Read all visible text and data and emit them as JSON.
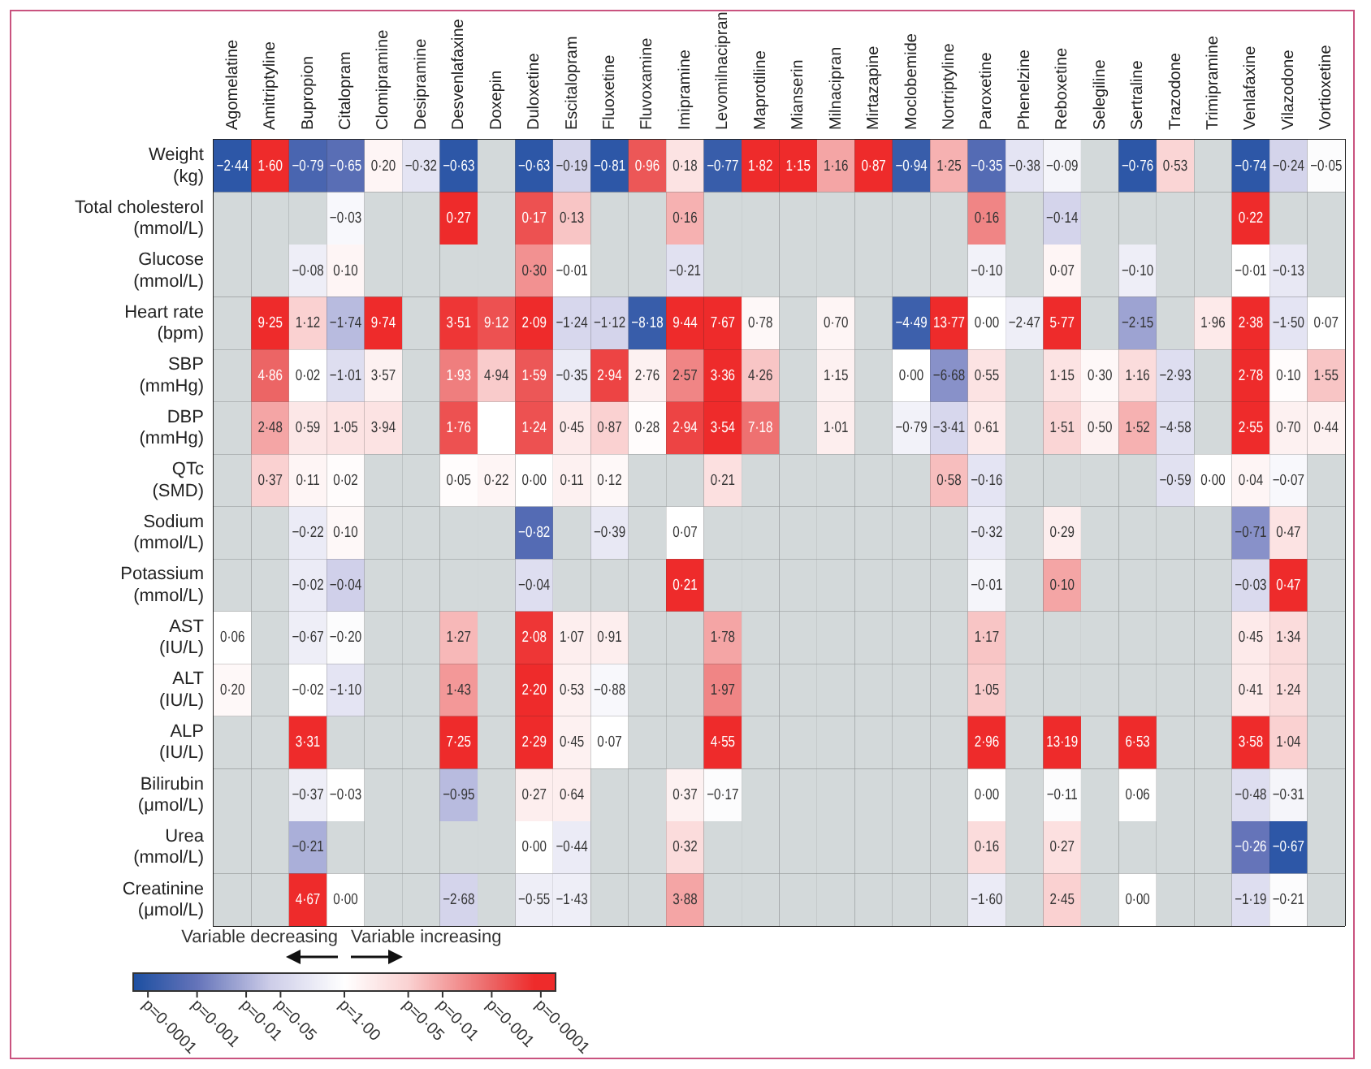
{
  "chart_data": {
    "type": "heatmap",
    "categories": [
      "Agomelatine",
      "Amitriptyline",
      "Bupropion",
      "Citalopram",
      "Clomipramine",
      "Desipramine",
      "Desvenlafaxine",
      "Doxepin",
      "Duloxetine",
      "Escitalopram",
      "Fluoxetine",
      "Fluvoxamine",
      "Imipramine",
      "Levomilnacipran",
      "Maprotiline",
      "Mianserin",
      "Milnacipran",
      "Mirtazapine",
      "Moclobemide",
      "Nortriptyline",
      "Paroxetine",
      "Phenelzine",
      "Reboxetine",
      "Selegiline",
      "Sertraline",
      "Trazodone",
      "Trimipramine",
      "Venlafaxine",
      "Vilazodone",
      "Vortioxetine"
    ],
    "y_categories": [
      "Weight (kg)",
      "Total cholesterol (mmol/L)",
      "Glucose (mmol/L)",
      "Heart rate (bpm)",
      "SBP (mmHg)",
      "DBP (mmHg)",
      "QTc (SMD)",
      "Sodium (mmol/L)",
      "Potassium (mmol/L)",
      "AST (IU/L)",
      "ALT (IU/L)",
      "ALP (IU/L)",
      "Bilirubin (μmol/L)",
      "Urea (mmol/L)",
      "Creatinine (μmol/L)"
    ],
    "cells": [
      [
        -4,
        4,
        -3.5,
        -3.2,
        0.3,
        -0.8,
        -4,
        null,
        -4,
        -1.3,
        -4,
        3.2,
        0.8,
        -3.8,
        4,
        4,
        2,
        4,
        -3.8,
        1.8,
        -3.3,
        -0.8,
        -0.3,
        null,
        -4,
        1.2,
        null,
        -4,
        -1.3,
        -0.1
      ],
      [
        null,
        null,
        null,
        -0.2,
        null,
        null,
        4,
        null,
        3.3,
        1.5,
        null,
        null,
        1.8,
        null,
        null,
        null,
        null,
        null,
        null,
        null,
        2.5,
        null,
        -1.3,
        null,
        null,
        null,
        null,
        4,
        null,
        null
      ],
      [
        null,
        null,
        -0.5,
        0.3,
        null,
        null,
        null,
        null,
        2.3,
        0,
        null,
        null,
        -0.9,
        null,
        null,
        null,
        null,
        null,
        null,
        null,
        -0.4,
        null,
        0.3,
        null,
        -0.5,
        null,
        null,
        0,
        -0.7,
        null
      ],
      [
        null,
        4,
        1.3,
        -1.8,
        4,
        null,
        3.7,
        3.3,
        4,
        -1.2,
        -1.3,
        -3.8,
        4,
        4,
        0.2,
        null,
        0.3,
        null,
        -3.7,
        4,
        0,
        -0.5,
        4,
        null,
        -2.2,
        null,
        0.6,
        4,
        -0.8,
        0
      ],
      [
        null,
        3,
        0,
        -1,
        0.4,
        null,
        2.6,
        1.4,
        3.2,
        -0.6,
        3.5,
        0.4,
        2.5,
        4,
        1.5,
        null,
        0.4,
        null,
        0,
        -2.5,
        0.8,
        null,
        0.8,
        0.2,
        1,
        -1,
        null,
        4,
        0.1,
        1.5
      ],
      [
        null,
        2,
        0.7,
        0.8,
        0.8,
        null,
        3.3,
        0,
        3.3,
        0.6,
        1.3,
        0.1,
        3.5,
        4,
        2.8,
        null,
        0.5,
        null,
        -0.4,
        -1.2,
        0.6,
        null,
        1.2,
        0.4,
        1.8,
        -0.9,
        null,
        4,
        0.4,
        0.4
      ],
      [
        null,
        1.3,
        0.3,
        0.1,
        null,
        null,
        0.1,
        0.3,
        0,
        0.4,
        0.2,
        null,
        null,
        0.9,
        null,
        null,
        null,
        null,
        null,
        1.6,
        -0.8,
        null,
        null,
        null,
        null,
        -0.9,
        0,
        0.3,
        -0.2,
        null
      ],
      [
        null,
        null,
        -0.6,
        0.2,
        null,
        null,
        null,
        null,
        -3.3,
        null,
        -0.7,
        null,
        0,
        null,
        null,
        null,
        null,
        null,
        null,
        null,
        -0.6,
        null,
        0.5,
        null,
        null,
        null,
        null,
        -2.5,
        0.8,
        null
      ],
      [
        null,
        null,
        -0.6,
        -1.4,
        null,
        null,
        null,
        null,
        -1,
        null,
        null,
        null,
        4,
        null,
        null,
        null,
        null,
        null,
        null,
        null,
        -0.3,
        null,
        2,
        null,
        null,
        null,
        null,
        -1.1,
        4,
        null
      ],
      [
        0,
        null,
        -0.5,
        -0.1,
        null,
        null,
        1.7,
        null,
        3.7,
        0.5,
        0.5,
        null,
        null,
        2,
        null,
        null,
        null,
        null,
        null,
        null,
        1.5,
        null,
        null,
        null,
        null,
        null,
        null,
        0.6,
        1,
        null
      ],
      [
        0.2,
        null,
        0,
        -0.8,
        null,
        null,
        2.2,
        null,
        4,
        0.4,
        -0.2,
        null,
        null,
        2.5,
        null,
        null,
        null,
        null,
        null,
        null,
        1.4,
        null,
        null,
        null,
        null,
        null,
        null,
        0.6,
        1,
        null
      ],
      [
        null,
        null,
        4,
        null,
        null,
        null,
        4,
        null,
        4,
        0.4,
        0,
        null,
        null,
        4,
        null,
        null,
        null,
        null,
        null,
        null,
        4,
        null,
        4,
        null,
        4,
        null,
        null,
        4,
        1.3,
        null
      ],
      [
        null,
        null,
        -0.5,
        0,
        null,
        null,
        -1.8,
        null,
        0.5,
        0.5,
        null,
        null,
        0.4,
        -0.1,
        null,
        null,
        null,
        null,
        null,
        null,
        0,
        null,
        -0.1,
        null,
        0,
        null,
        null,
        -1,
        -0.3,
        null
      ],
      [
        null,
        null,
        -2,
        null,
        null,
        null,
        null,
        null,
        0,
        -0.6,
        null,
        null,
        1,
        null,
        null,
        null,
        null,
        null,
        null,
        null,
        1,
        null,
        0.9,
        null,
        null,
        null,
        null,
        -3,
        -4,
        null
      ],
      [
        null,
        null,
        4,
        0,
        null,
        null,
        -1.3,
        null,
        -0.5,
        -0.5,
        null,
        null,
        2,
        null,
        null,
        null,
        null,
        null,
        null,
        null,
        -0.6,
        null,
        1.3,
        null,
        0,
        null,
        null,
        -1,
        -0.1,
        null
      ]
    ],
    "cell_labels": [
      [
        "−2·44",
        "1·60",
        "−0·79",
        "−0·65",
        "0·20",
        "−0·32",
        "−0·63",
        null,
        "−0·63",
        "−0·19",
        "−0·81",
        "0·96",
        "0·18",
        "−0·77",
        "1·82",
        "1·15",
        "1·16",
        "0·87",
        "−0·94",
        "1·25",
        "−0·35",
        "−0·38",
        "−0·09",
        null,
        "−0·76",
        "0·53",
        null,
        "−0·74",
        "−0·24",
        "−0·05"
      ],
      [
        null,
        null,
        null,
        "−0·03",
        null,
        null,
        "0·27",
        null,
        "0·17",
        "0·13",
        null,
        null,
        "0·16",
        null,
        null,
        null,
        null,
        null,
        null,
        null,
        "0·16",
        null,
        "−0·14",
        null,
        null,
        null,
        null,
        "0·22",
        null,
        null
      ],
      [
        null,
        null,
        "−0·08",
        "0·10",
        null,
        null,
        null,
        null,
        "0·30",
        "−0·01",
        null,
        null,
        "−0·21",
        null,
        null,
        null,
        null,
        null,
        null,
        null,
        "−0·10",
        null,
        "0·07",
        null,
        "−0·10",
        null,
        null,
        "−0·01",
        "−0·13",
        null
      ],
      [
        null,
        "9·25",
        "1·12",
        "−1·74",
        "9·74",
        null,
        "3·51",
        "9·12",
        "2·09",
        "−1·24",
        "−1·12",
        "−8·18",
        "9·44",
        "7·67",
        "0·78",
        null,
        "0·70",
        null,
        "−4·49",
        "13·77",
        "0·00",
        "−2·47",
        "5·77",
        null,
        "−2·15",
        null,
        "1·96",
        "2·38",
        "−1·50",
        "0·07"
      ],
      [
        null,
        "4·86",
        "0·02",
        "−1·01",
        "3·57",
        null,
        "1·93",
        "4·94",
        "1·59",
        "−0·35",
        "2·94",
        "2·76",
        "2·57",
        "3·36",
        "4·26",
        null,
        "1·15",
        null,
        "0·00",
        "−6·68",
        "0·55",
        null,
        "1·15",
        "0·30",
        "1·16",
        "−2·93",
        null,
        "2·78",
        "0·10",
        "1·55"
      ],
      [
        null,
        "2·48",
        "0·59",
        "1·05",
        "3·94",
        null,
        "1·76",
        null,
        "1·24",
        "0·45",
        "0·87",
        "0·28",
        "2·94",
        "3·54",
        "7·18",
        null,
        "1·01",
        null,
        "−0·79",
        "−3·41",
        "0·61",
        null,
        "1·51",
        "0·50",
        "1·52",
        "−4·58",
        null,
        "2·55",
        "0·70",
        "0·44"
      ],
      [
        null,
        "0·37",
        "0·11",
        "0·02",
        null,
        null,
        "0·05",
        "0·22",
        "0·00",
        "0·11",
        "0·12",
        null,
        null,
        "0·21",
        null,
        null,
        null,
        null,
        null,
        "0·58",
        "−0·16",
        null,
        null,
        null,
        null,
        "−0·59",
        "0·00",
        "0·04",
        "−0·07",
        null
      ],
      [
        null,
        null,
        "−0·22",
        "0·10",
        null,
        null,
        null,
        null,
        "−0·82",
        null,
        "−0·39",
        null,
        "0·07",
        null,
        null,
        null,
        null,
        null,
        null,
        null,
        "−0·32",
        null,
        "0·29",
        null,
        null,
        null,
        null,
        "−0·71",
        "0·47",
        null
      ],
      [
        null,
        null,
        "−0·02",
        "−0·04",
        null,
        null,
        null,
        null,
        "−0·04",
        null,
        null,
        null,
        "0·21",
        null,
        null,
        null,
        null,
        null,
        null,
        null,
        "−0·01",
        null,
        "0·10",
        null,
        null,
        null,
        null,
        "−0·03",
        "0·47",
        null
      ],
      [
        "0·06",
        null,
        "−0·67",
        "−0·20",
        null,
        null,
        "1·27",
        null,
        "2·08",
        "1·07",
        "0·91",
        null,
        null,
        "1·78",
        null,
        null,
        null,
        null,
        null,
        null,
        "1·17",
        null,
        null,
        null,
        null,
        null,
        null,
        "0·45",
        "1·34",
        null
      ],
      [
        "0·20",
        null,
        "−0·02",
        "−1·10",
        null,
        null,
        "1·43",
        null,
        "2·20",
        "0·53",
        "−0·88",
        null,
        null,
        "1·97",
        null,
        null,
        null,
        null,
        null,
        null,
        "1·05",
        null,
        null,
        null,
        null,
        null,
        null,
        "0·41",
        "1·24",
        null
      ],
      [
        null,
        null,
        "3·31",
        null,
        null,
        null,
        "7·25",
        null,
        "2·29",
        "0·45",
        "0·07",
        null,
        null,
        "4·55",
        null,
        null,
        null,
        null,
        null,
        null,
        "2·96",
        null,
        "13·19",
        null,
        "6·53",
        null,
        null,
        "3·58",
        "1·04",
        null
      ],
      [
        null,
        null,
        "−0·37",
        "−0·03",
        null,
        null,
        "−0·95",
        null,
        "0·27",
        "0·64",
        null,
        null,
        "0·37",
        "−0·17",
        null,
        null,
        null,
        null,
        null,
        null,
        "0·00",
        null,
        "−0·11",
        null,
        "0·06",
        null,
        null,
        "−0·48",
        "−0·31",
        null
      ],
      [
        null,
        null,
        "−0·21",
        null,
        null,
        null,
        null,
        null,
        "0·00",
        "−0·44",
        null,
        null,
        "0·32",
        null,
        null,
        null,
        null,
        null,
        null,
        null,
        "0·16",
        null,
        "0·27",
        null,
        null,
        null,
        null,
        "−0·26",
        "−0·67",
        null
      ],
      [
        null,
        null,
        "4·67",
        "0·00",
        null,
        null,
        "−2·68",
        null,
        "−0·55",
        "−1·43",
        null,
        null,
        "3·88",
        null,
        null,
        null,
        null,
        null,
        null,
        null,
        "−1·60",
        null,
        "2·45",
        null,
        "0·00",
        null,
        null,
        "−1·19",
        "−0·21",
        null
      ]
    ],
    "clim": [
      -4.3,
      4.3
    ],
    "cticks": [
      {
        "value": -4,
        "label": "p=0·0001"
      },
      {
        "value": -3,
        "label": "p=0·001"
      },
      {
        "value": -2,
        "label": "p=0·01"
      },
      {
        "value": -1.3,
        "label": "p=0·05"
      },
      {
        "value": 0,
        "label": "p=1·00"
      },
      {
        "value": 1.3,
        "label": "p=0·05"
      },
      {
        "value": 2,
        "label": "p=0·01"
      },
      {
        "value": 3,
        "label": "p=0·001"
      },
      {
        "value": 4,
        "label": "p=0·0001"
      }
    ],
    "annotations": [
      "Variable decreasing",
      "Variable increasing"
    ],
    "grid": true
  }
}
